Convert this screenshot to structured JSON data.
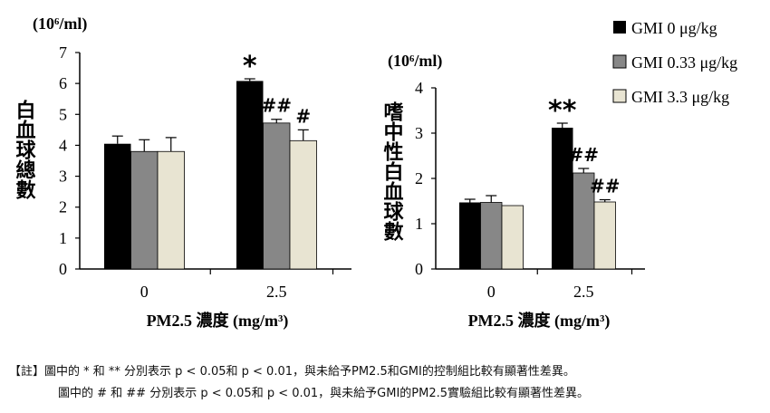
{
  "legend": [
    {
      "label": "GMI 0 μg/kg",
      "color": "#000000"
    },
    {
      "label": "GMI 0.33 μg/kg",
      "color": "#878787"
    },
    {
      "label": "GMI 3.3 μg/kg",
      "color": "#e8e4d2"
    }
  ],
  "notes": {
    "line1": "【註】圖中的 * 和 ** 分別表示 p < 0.05和 p < 0.01，與未給予PM2.5和GMI的控制組比較有顯著性差異。",
    "line2": "圖中的 # 和 ## 分別表示 p < 0.05和 p < 0.01，與未給予GMI的PM2.5實驗組比較有顯著性差異。"
  },
  "chart_data": [
    {
      "type": "bar",
      "unit": "(10⁶/ml)",
      "ylabel": "白血球總數",
      "xlabel": "PM2.5 濃度 (mg/m³)",
      "categories": [
        "0",
        "2.5"
      ],
      "ylim": [
        0,
        7
      ],
      "yticks": [
        0,
        1,
        2,
        3,
        4,
        5,
        6,
        7
      ],
      "series": [
        {
          "name": "GMI 0 μg/kg",
          "values": [
            4.05,
            6.08
          ],
          "errors": [
            0.25,
            0.07
          ],
          "color": "#000000"
        },
        {
          "name": "GMI 0.33 μg/kg",
          "values": [
            3.8,
            4.72
          ],
          "errors": [
            0.38,
            0.12
          ],
          "color": "#878787"
        },
        {
          "name": "GMI 3.3 μg/kg",
          "values": [
            3.8,
            4.15
          ],
          "errors": [
            0.45,
            0.35
          ],
          "color": "#e8e4d2"
        }
      ],
      "annotations": [
        [
          "",
          "*"
        ],
        [
          "",
          "##"
        ],
        [
          "",
          "#"
        ]
      ]
    },
    {
      "type": "bar",
      "unit": "(10⁶/ml)",
      "ylabel": "嗜中性白血球數",
      "xlabel": "PM2.5 濃度 (mg/m³)",
      "categories": [
        "0",
        "2.5"
      ],
      "ylim": [
        0,
        4
      ],
      "yticks": [
        0,
        1,
        2,
        3,
        4
      ],
      "series": [
        {
          "name": "GMI 0 μg/kg",
          "values": [
            1.47,
            3.12
          ],
          "errors": [
            0.07,
            0.1
          ],
          "color": "#000000"
        },
        {
          "name": "GMI 0.33 μg/kg",
          "values": [
            1.47,
            2.12
          ],
          "errors": [
            0.15,
            0.1
          ],
          "color": "#878787"
        },
        {
          "name": "GMI 3.3 μg/kg",
          "values": [
            1.4,
            1.48
          ],
          "errors": [
            0.0,
            0.05
          ],
          "color": "#e8e4d2"
        }
      ],
      "annotations": [
        [
          "",
          "**"
        ],
        [
          "",
          "##"
        ],
        [
          "",
          "##"
        ]
      ]
    }
  ]
}
